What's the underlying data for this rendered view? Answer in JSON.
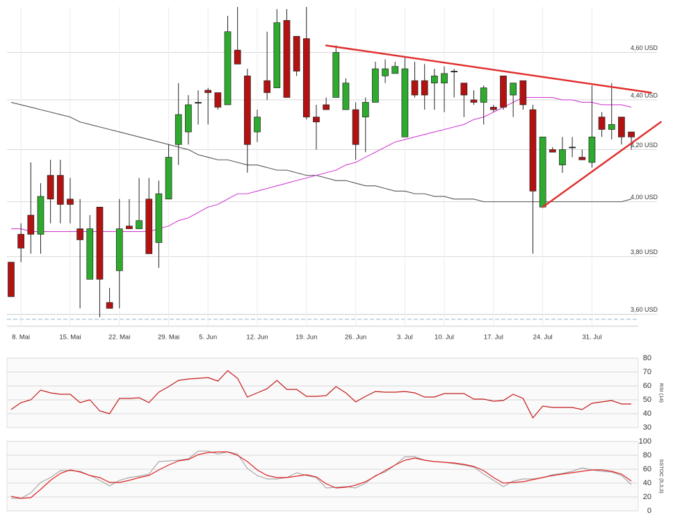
{
  "chart_data": [
    {
      "type": "candlestick",
      "categories": [
        null,
        "8. Mai",
        null,
        null,
        null,
        null,
        "15. Mai",
        null,
        null,
        null,
        null,
        "22. Mai",
        null,
        null,
        null,
        null,
        "29. Mai",
        null,
        null,
        null,
        "5. Jun",
        null,
        null,
        null,
        null,
        "12. Jun",
        null,
        null,
        null,
        null,
        "19. Jun",
        null,
        null,
        null,
        null,
        "26. Jun",
        null,
        null,
        null,
        null,
        "3. Jul",
        null,
        null,
        null,
        "10. Jul",
        null,
        null,
        null,
        null,
        "17. Jul",
        null,
        null,
        null,
        null,
        "24. Jul",
        null,
        null,
        null,
        null,
        "31. Jul",
        null,
        null,
        null,
        null
      ],
      "open": [
        3.78,
        3.88,
        3.95,
        3.88,
        4.1,
        4.1,
        4.01,
        3.9,
        3.72,
        3.98,
        3.64,
        3.75,
        3.91,
        3.9,
        4.01,
        3.85,
        4.01,
        4.22,
        4.27,
        4.39,
        4.44,
        4.43,
        4.38,
        4.61,
        4.5,
        4.27,
        4.48,
        4.45,
        4.74,
        4.67,
        4.66,
        4.33,
        4.38,
        4.41,
        4.36,
        4.36,
        4.33,
        4.39,
        4.5,
        4.51,
        4.25,
        4.48,
        4.48,
        4.47,
        4.47,
        4.52,
        4.47,
        4.4,
        4.39,
        4.37,
        4.5,
        4.42,
        4.48,
        4.36,
        3.98,
        4.2,
        4.14,
        4.21,
        4.17,
        4.15,
        4.33,
        4.28,
        4.33,
        4.27
      ],
      "high": [
        3.78,
        3.92,
        4.15,
        4.07,
        4.16,
        4.16,
        4.09,
        4.01,
        3.95,
        3.98,
        3.69,
        4.01,
        4.01,
        4.09,
        4.09,
        4.08,
        4.22,
        4.47,
        4.42,
        4.44,
        4.45,
        4.43,
        4.76,
        4.8,
        4.53,
        4.36,
        4.69,
        4.79,
        4.79,
        4.67,
        4.8,
        4.38,
        4.41,
        4.63,
        4.49,
        4.39,
        4.41,
        4.56,
        4.57,
        4.56,
        4.58,
        4.56,
        4.55,
        4.53,
        4.54,
        4.53,
        4.47,
        4.44,
        4.46,
        4.38,
        4.5,
        4.47,
        4.48,
        4.38,
        4.25,
        4.21,
        4.25,
        4.25,
        4.2,
        4.46,
        4.35,
        4.47,
        4.33,
        4.27
      ],
      "low": [
        3.66,
        3.78,
        3.81,
        3.81,
        3.92,
        3.92,
        3.92,
        3.62,
        3.72,
        3.59,
        3.62,
        3.62,
        3.9,
        3.9,
        3.81,
        3.76,
        4.01,
        4.14,
        4.22,
        4.3,
        4.3,
        4.36,
        4.38,
        4.55,
        4.11,
        4.23,
        4.4,
        4.45,
        4.41,
        4.5,
        4.32,
        4.2,
        4.36,
        4.41,
        4.36,
        4.16,
        4.19,
        4.39,
        4.47,
        4.51,
        4.25,
        4.41,
        4.36,
        4.36,
        4.35,
        4.41,
        4.33,
        4.38,
        4.3,
        4.35,
        4.36,
        4.33,
        4.36,
        3.81,
        3.98,
        4.19,
        4.11,
        4.17,
        4.16,
        4.13,
        4.25,
        4.24,
        4.22,
        4.2
      ],
      "close": [
        3.66,
        3.83,
        3.88,
        4.02,
        4.01,
        3.99,
        3.99,
        3.86,
        3.9,
        3.72,
        3.62,
        3.9,
        3.9,
        3.93,
        3.81,
        4.03,
        4.17,
        4.34,
        4.38,
        4.39,
        4.43,
        4.37,
        4.69,
        4.55,
        4.22,
        4.33,
        4.43,
        4.73,
        4.41,
        4.52,
        4.33,
        4.31,
        4.36,
        4.6,
        4.47,
        4.22,
        4.39,
        4.53,
        4.53,
        4.54,
        4.53,
        4.42,
        4.42,
        4.5,
        4.51,
        4.52,
        4.42,
        4.39,
        4.45,
        4.36,
        4.37,
        4.47,
        4.38,
        4.04,
        4.25,
        4.19,
        4.2,
        4.21,
        4.16,
        4.25,
        4.28,
        4.3,
        4.25,
        4.25
      ],
      "up_color": "#2eaa2e",
      "down_color": "#b31212",
      "overlays": [
        {
          "color": "#555555",
          "values": [
            4.39,
            4.38,
            4.37,
            4.36,
            4.35,
            4.34,
            4.33,
            4.31,
            4.3,
            4.29,
            4.28,
            4.27,
            4.26,
            4.25,
            4.24,
            4.23,
            4.22,
            4.21,
            4.2,
            4.18,
            4.17,
            4.16,
            4.16,
            4.15,
            4.14,
            4.14,
            4.13,
            4.12,
            4.12,
            4.11,
            4.1,
            4.1,
            4.09,
            4.08,
            4.08,
            4.07,
            4.06,
            4.06,
            4.05,
            4.04,
            4.04,
            4.03,
            4.03,
            4.02,
            4.02,
            4.01,
            4.01,
            4.01,
            4.0,
            4.0,
            4.0,
            4.0,
            4.0,
            4.0,
            4.0,
            4.0,
            4.0,
            4.0,
            4.0,
            4.0,
            4.0,
            4.0,
            4.0,
            4.01
          ]
        },
        {
          "color": "#d23fd2",
          "values": [
            3.9,
            3.9,
            3.89,
            3.89,
            3.89,
            3.89,
            3.89,
            3.89,
            3.89,
            3.89,
            3.89,
            3.89,
            3.89,
            3.89,
            3.89,
            3.9,
            3.91,
            3.93,
            3.94,
            3.96,
            3.98,
            3.99,
            4.01,
            4.03,
            4.03,
            4.04,
            4.05,
            4.06,
            4.07,
            4.08,
            4.09,
            4.1,
            4.11,
            4.12,
            4.14,
            4.15,
            4.17,
            4.19,
            4.21,
            4.23,
            4.24,
            4.25,
            4.26,
            4.27,
            4.28,
            4.29,
            4.3,
            4.32,
            4.33,
            4.35,
            4.37,
            4.39,
            4.41,
            4.41,
            4.41,
            4.41,
            4.4,
            4.4,
            4.39,
            4.39,
            4.38,
            4.38,
            4.38,
            4.37
          ]
        }
      ],
      "trendlines": [
        {
          "color": "#e03030",
          "from": {
            "index": 32,
            "value": 4.63
          },
          "to": {
            "index": 65,
            "value": 4.43
          }
        },
        {
          "color": "#e03030",
          "from": {
            "index": 54,
            "value": 3.98
          },
          "to": {
            "index": 66,
            "value": 4.31
          }
        }
      ],
      "log_scale": true,
      "grid": true,
      "ylim": [
        3.56,
        4.8
      ],
      "yticks": [
        {
          "value": 3.6,
          "label": "3,60 USD"
        },
        {
          "value": 3.8,
          "label": "3,80 USD"
        },
        {
          "value": 4.0,
          "label": "4,00 USD"
        },
        {
          "value": 4.2,
          "label": "4,20 USD"
        },
        {
          "value": 4.4,
          "label": "4,40 USD"
        },
        {
          "value": 4.6,
          "label": "4,60 USD"
        }
      ]
    },
    {
      "type": "line",
      "y_label": "RSI (14)",
      "grid": true,
      "ylim": [
        30,
        80
      ],
      "yticks": [
        30,
        40,
        50,
        60,
        70,
        80
      ],
      "series": [
        {
          "color": "#c41a1a",
          "values": [
            43,
            48,
            50,
            57,
            55,
            54,
            54,
            48,
            50,
            42,
            40,
            51,
            51,
            51.5,
            48,
            55.5,
            59.5,
            64,
            65,
            65.5,
            66,
            63.5,
            71,
            65.5,
            52,
            55,
            58,
            64,
            57.5,
            57.5,
            52.5,
            52.5,
            53,
            59.5,
            55,
            48.5,
            52.5,
            56,
            55.5,
            55.5,
            56,
            55,
            52,
            52,
            54.5,
            54.5,
            54.5,
            50.5,
            50.5,
            49,
            49.5,
            54,
            51,
            37,
            45.5,
            44.5,
            44.5,
            44.5,
            43,
            47.5,
            48.5,
            49.5,
            47,
            47
          ]
        }
      ]
    },
    {
      "type": "line",
      "y_label": "SSTOC (5,3,3)",
      "grid": true,
      "ylim": [
        0,
        100
      ],
      "yticks": [
        0,
        20,
        40,
        60,
        80,
        100
      ],
      "series": [
        {
          "color": "#a8a8a8",
          "values": [
            18,
            18,
            26,
            41,
            48,
            58,
            58,
            57,
            51,
            44,
            36,
            44,
            48,
            50,
            53,
            71,
            72,
            73,
            75,
            86,
            86,
            82,
            85,
            82,
            61,
            51,
            46,
            46,
            48,
            55,
            51,
            48,
            33,
            34,
            35,
            33,
            40,
            51,
            56,
            66,
            78,
            78,
            73,
            71,
            70,
            68,
            66,
            63,
            53,
            44,
            35,
            43,
            46,
            46,
            48,
            52,
            54,
            57,
            62,
            59,
            57,
            56,
            51,
            38
          ]
        },
        {
          "color": "#e02020",
          "values": [
            21,
            18,
            19,
            31,
            44,
            54,
            59,
            56,
            51,
            48,
            41,
            41,
            44,
            48,
            51,
            59,
            66,
            72,
            74,
            81,
            84,
            85,
            85,
            80,
            71,
            59,
            51,
            48,
            48,
            50,
            52,
            49,
            39,
            33,
            34,
            37,
            42,
            50,
            58,
            66,
            73,
            76,
            73,
            71,
            70,
            69,
            67,
            64,
            58,
            48,
            40,
            41,
            42,
            45,
            48,
            51,
            53,
            55,
            57,
            59,
            59,
            57,
            53,
            43
          ]
        }
      ]
    }
  ]
}
